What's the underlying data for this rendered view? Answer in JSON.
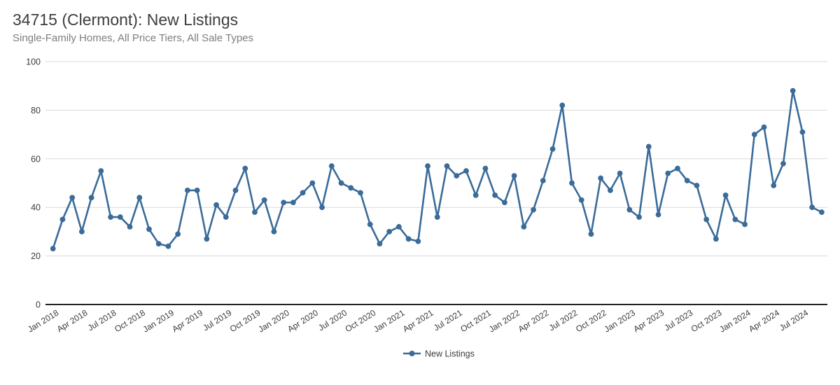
{
  "header": {
    "title": "34715 (Clermont): New Listings",
    "subtitle": "Single-Family Homes, All Price Tiers, All Sale Types"
  },
  "chart_data": {
    "type": "line",
    "title": "34715 (Clermont): New Listings",
    "subtitle": "Single-Family Homes, All Price Tiers, All Sale Types",
    "categories": [
      "Jan 2018",
      "Feb 2018",
      "Mar 2018",
      "Apr 2018",
      "May 2018",
      "Jun 2018",
      "Jul 2018",
      "Aug 2018",
      "Sep 2018",
      "Oct 2018",
      "Nov 2018",
      "Dec 2018",
      "Jan 2019",
      "Feb 2019",
      "Mar 2019",
      "Apr 2019",
      "May 2019",
      "Jun 2019",
      "Jul 2019",
      "Aug 2019",
      "Sep 2019",
      "Oct 2019",
      "Nov 2019",
      "Dec 2019",
      "Jan 2020",
      "Feb 2020",
      "Mar 2020",
      "Apr 2020",
      "May 2020",
      "Jun 2020",
      "Jul 2020",
      "Aug 2020",
      "Sep 2020",
      "Oct 2020",
      "Nov 2020",
      "Dec 2020",
      "Jan 2021",
      "Feb 2021",
      "Mar 2021",
      "Apr 2021",
      "May 2021",
      "Jun 2021",
      "Jul 2021",
      "Aug 2021",
      "Sep 2021",
      "Oct 2021",
      "Nov 2021",
      "Dec 2021",
      "Jan 2022",
      "Feb 2022",
      "Mar 2022",
      "Apr 2022",
      "May 2022",
      "Jun 2022",
      "Jul 2022",
      "Aug 2022",
      "Sep 2022",
      "Oct 2022",
      "Nov 2022",
      "Dec 2022",
      "Jan 2023",
      "Feb 2023",
      "Mar 2023",
      "Apr 2023",
      "May 2023",
      "Jun 2023",
      "Jul 2023",
      "Aug 2023",
      "Sep 2023",
      "Oct 2023",
      "Nov 2023",
      "Dec 2023",
      "Jan 2024",
      "Feb 2024",
      "Mar 2024",
      "Apr 2024",
      "May 2024",
      "Jun 2024",
      "Jul 2024",
      "Aug 2024",
      "Sep 2024"
    ],
    "series": [
      {
        "name": "New Listings",
        "values": [
          23,
          35,
          44,
          30,
          44,
          55,
          36,
          36,
          32,
          44,
          31,
          25,
          24,
          29,
          47,
          47,
          27,
          41,
          36,
          47,
          56,
          38,
          43,
          30,
          42,
          42,
          46,
          50,
          40,
          57,
          50,
          48,
          46,
          33,
          25,
          30,
          32,
          27,
          26,
          57,
          36,
          57,
          53,
          55,
          45,
          56,
          45,
          42,
          53,
          32,
          39,
          51,
          64,
          82,
          50,
          43,
          29,
          52,
          47,
          54,
          39,
          36,
          65,
          37,
          54,
          56,
          51,
          49,
          35,
          27,
          45,
          35,
          33,
          70,
          73,
          49,
          58,
          88,
          71,
          40,
          38
        ]
      }
    ],
    "x_tick_every": 3,
    "x_tick_labels": [
      "Jan 2018",
      "Apr 2018",
      "Jul 2018",
      "Oct 2018",
      "Jan 2019",
      "Apr 2019",
      "Jul 2019",
      "Oct 2019",
      "Jan 2020",
      "Apr 2020",
      "Jul 2020",
      "Oct 2020",
      "Jan 2021",
      "Apr 2021",
      "Jul 2021",
      "Oct 2021",
      "Jan 2022",
      "Apr 2022",
      "Jul 2022",
      "Oct 2022",
      "Jan 2023",
      "Apr 2023",
      "Jul 2023",
      "Oct 2023",
      "Jan 2024",
      "Apr 2024",
      "Jul 2024"
    ],
    "y_ticks": [
      0,
      20,
      40,
      60,
      80,
      100
    ],
    "ylim": [
      0,
      100
    ],
    "xlabel": "",
    "ylabel": "",
    "grid": "horizontal",
    "legend_position": "bottom-center",
    "legend_label": "New Listings"
  },
  "colors": {
    "line": "#3a6b99",
    "marker": "#3a6b99",
    "gridline": "#d9d9d9",
    "axis_line": "#222222",
    "tick_label": "#3b3b3b",
    "title": "#3d3d3d",
    "subtitle": "#7d7d7d",
    "background": "#ffffff"
  }
}
